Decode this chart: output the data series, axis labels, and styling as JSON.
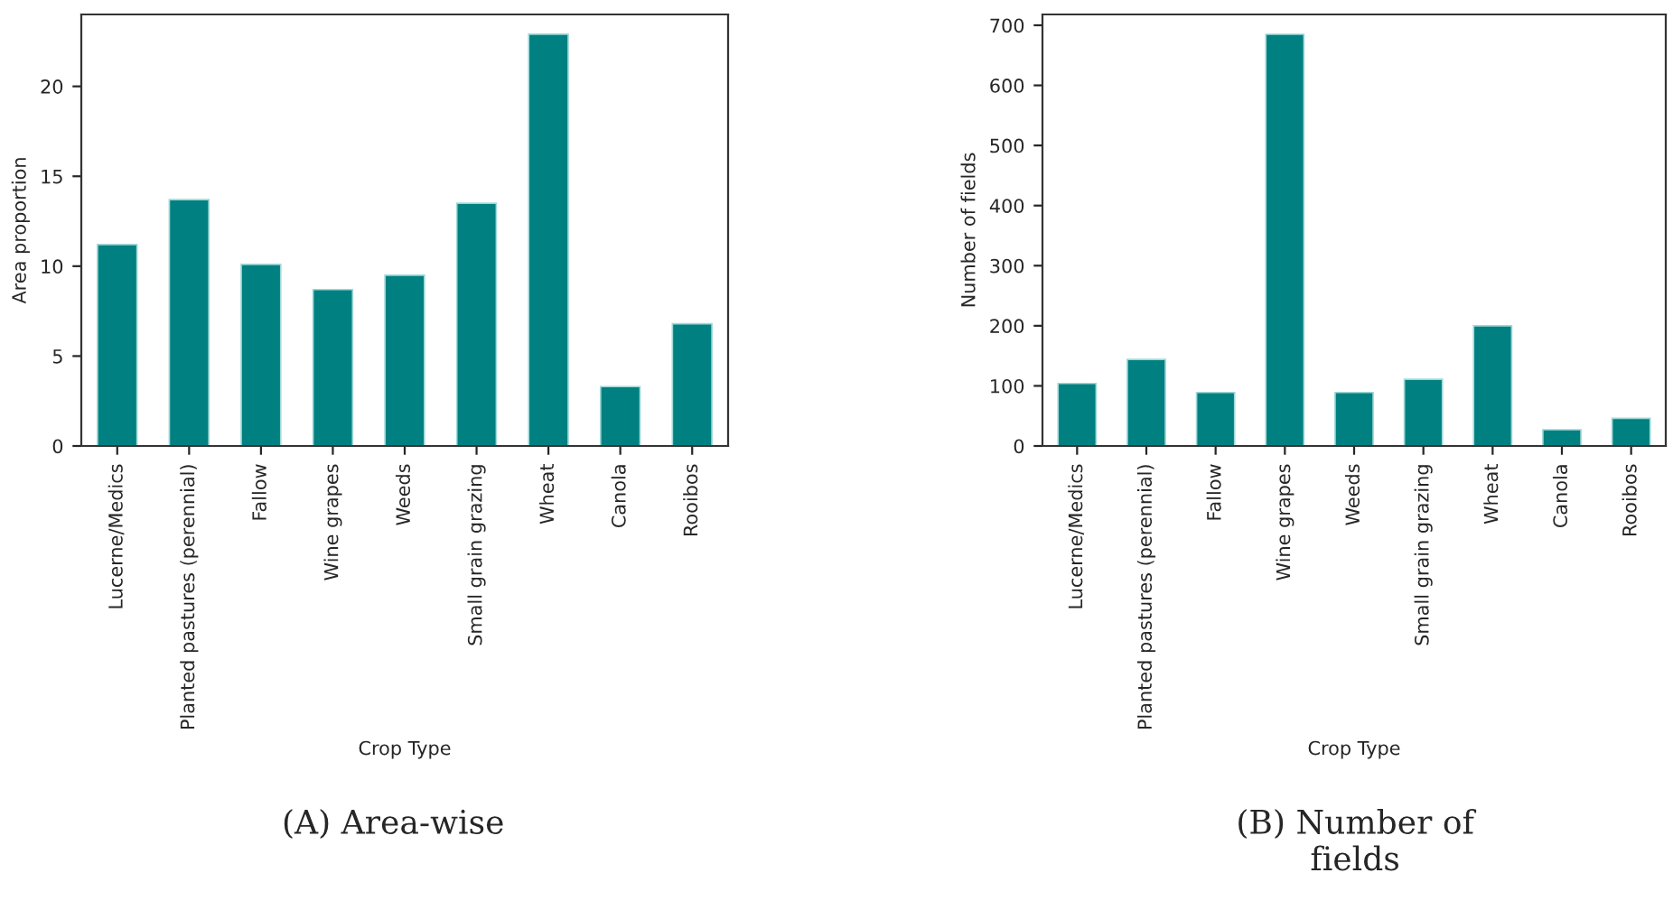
{
  "chart_data": [
    {
      "type": "bar",
      "xlabel": "Crop Type",
      "ylabel": "Area proportion",
      "categories": [
        "Lucerne/Medics",
        "Planted pastures (perennial)",
        "Fallow",
        "Wine grapes",
        "Weeds",
        "Small grain grazing",
        "Wheat",
        "Canola",
        "Rooibos"
      ],
      "values": [
        11.2,
        13.7,
        10.1,
        8.7,
        9.5,
        13.5,
        22.9,
        3.3,
        6.8
      ],
      "color": "#008080",
      "ylim": [
        0,
        24
      ],
      "yticks": [
        0,
        5,
        10,
        15,
        20
      ],
      "grid": false,
      "annotations": [
        "(A) Area-wise"
      ]
    },
    {
      "type": "bar",
      "xlabel": "Crop Type",
      "ylabel": "Number of fields",
      "categories": [
        "Lucerne/Medics",
        "Planted pastures (perennial)",
        "Fallow",
        "Wine grapes",
        "Weeds",
        "Small grain grazing",
        "Wheat",
        "Canola",
        "Rooibos"
      ],
      "values": [
        104,
        144,
        89,
        685,
        89,
        111,
        200,
        27,
        46
      ],
      "color": "#008080",
      "ylim": [
        0,
        718
      ],
      "yticks": [
        0,
        100,
        200,
        300,
        400,
        500,
        600,
        700
      ],
      "grid": false,
      "annotations": [
        "(B) Number of\nfields"
      ]
    }
  ]
}
